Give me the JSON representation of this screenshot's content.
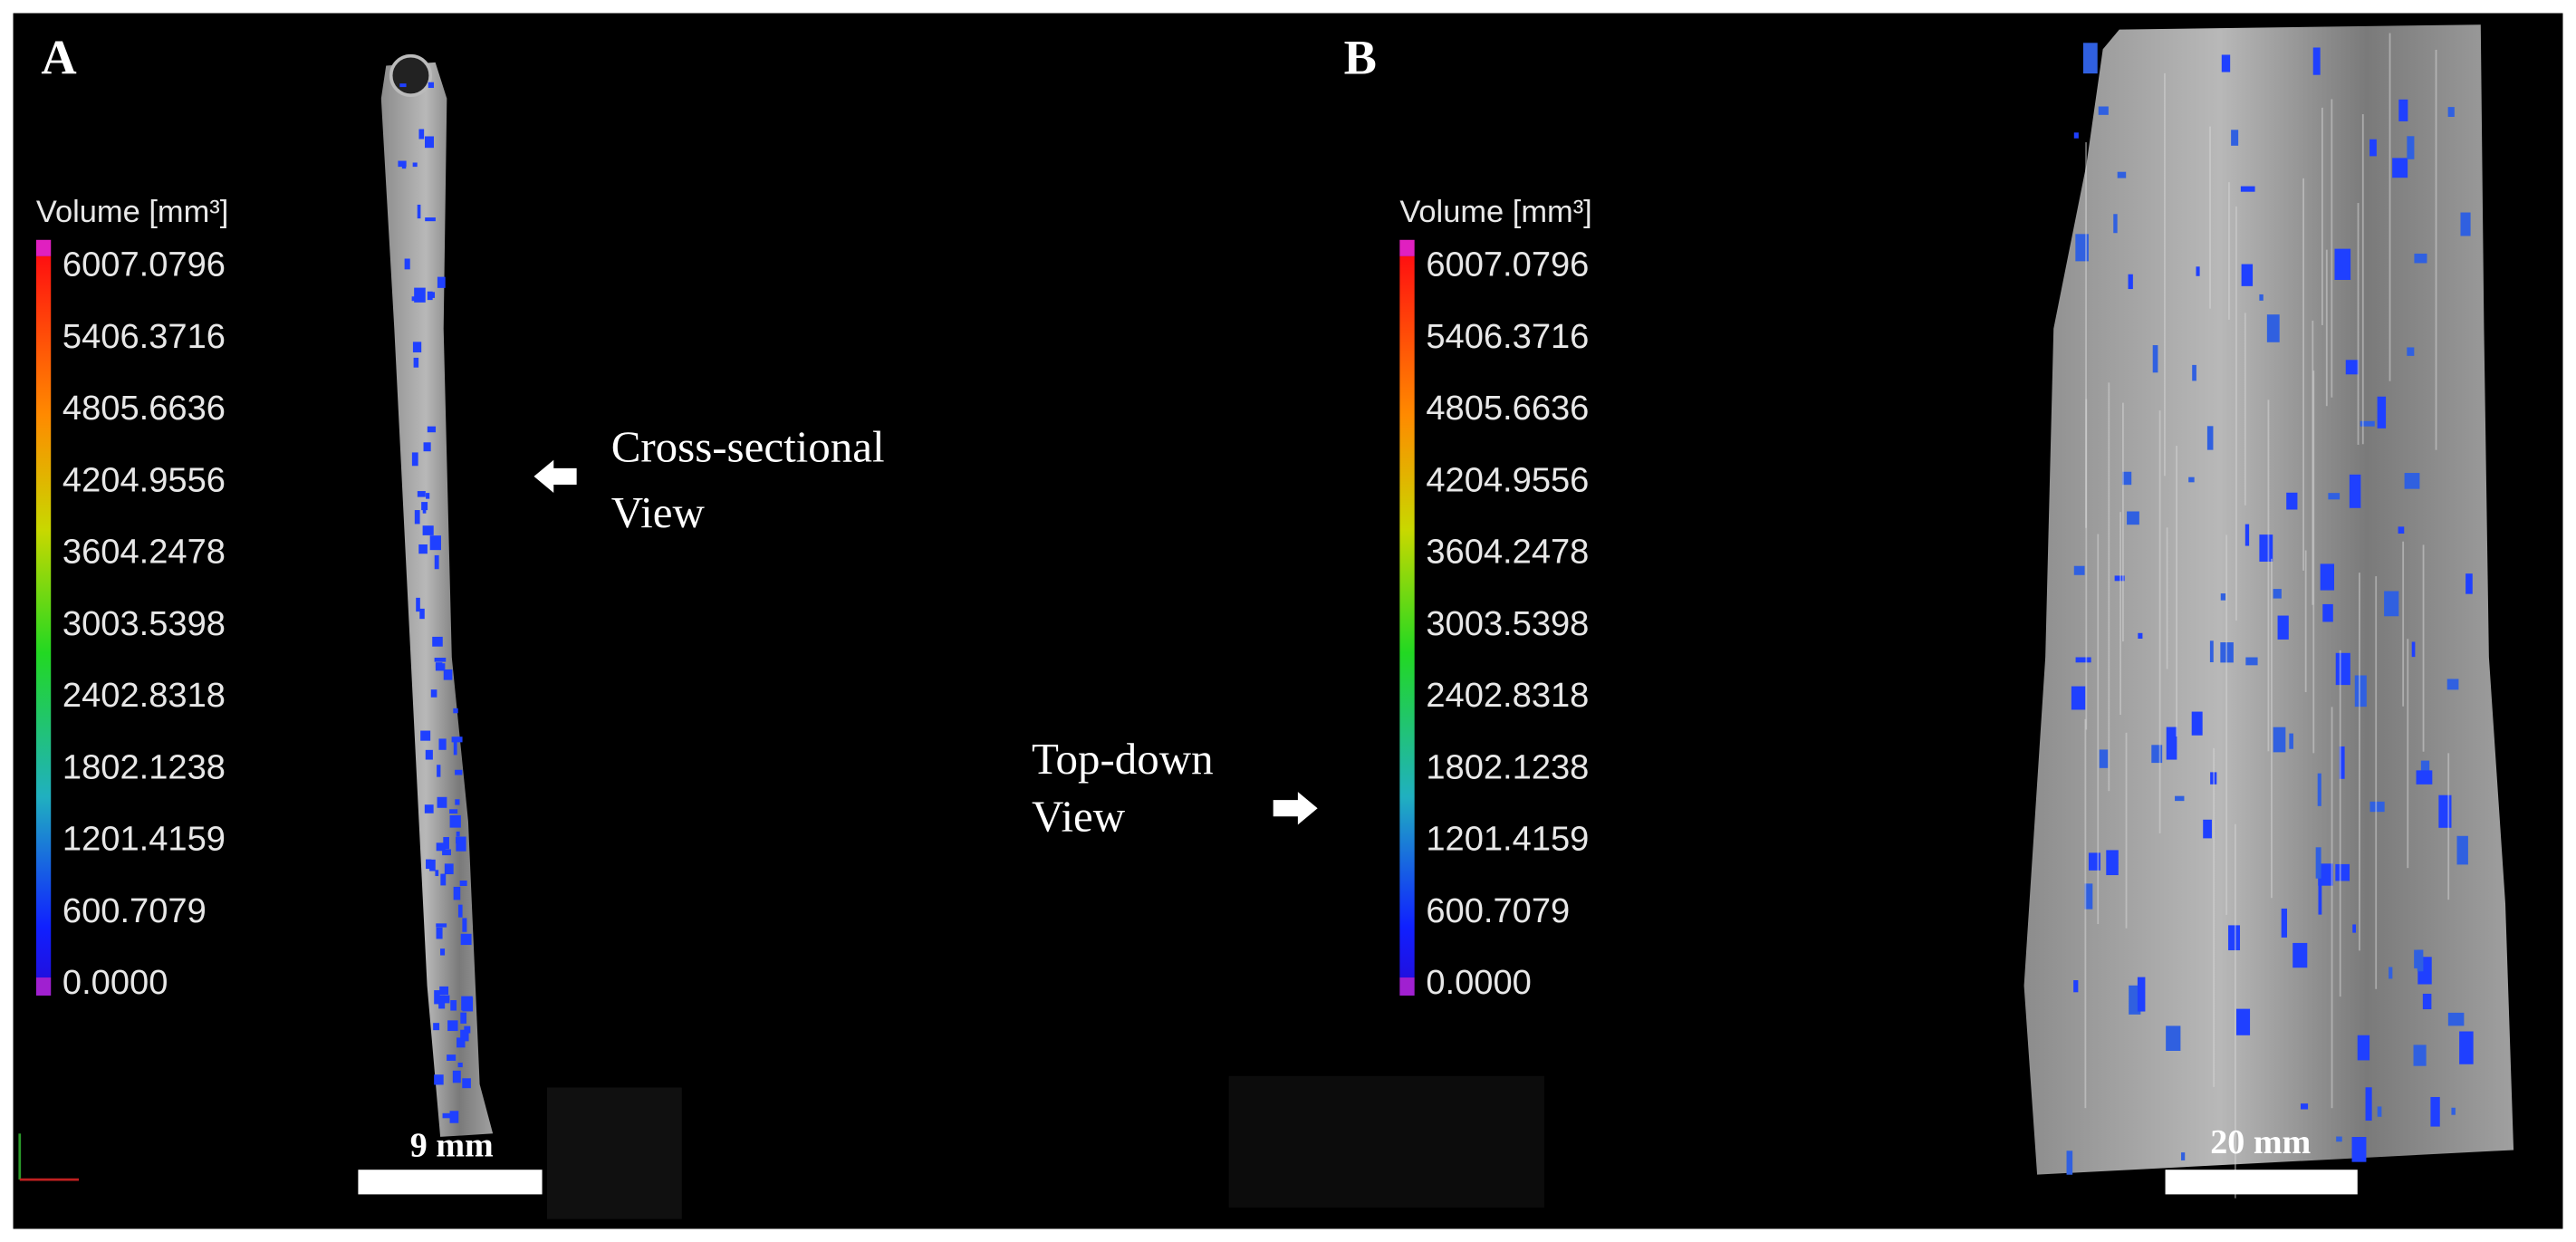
{
  "panels": [
    {
      "label": "A",
      "legend": {
        "title": "Volume [mm³]",
        "ticks": [
          "6007.0796",
          "5406.3716",
          "4805.6636",
          "4204.9556",
          "3604.2478",
          "3003.5398",
          "2402.8318",
          "1802.1238",
          "1201.4159",
          "600.7079",
          "0.0000"
        ]
      },
      "annotation": [
        "Cross-sectional",
        "View"
      ],
      "scale_bar": "9 mm"
    },
    {
      "label": "B",
      "legend": {
        "title": "Volume [mm³]",
        "ticks": [
          "6007.0796",
          "5406.3716",
          "4805.6636",
          "4204.9556",
          "3604.2478",
          "3003.5398",
          "2402.8318",
          "1802.1238",
          "1201.4159",
          "600.7079",
          "0.0000"
        ]
      },
      "annotation": [
        "Top-down",
        "View"
      ],
      "scale_bar": "20 mm"
    }
  ]
}
